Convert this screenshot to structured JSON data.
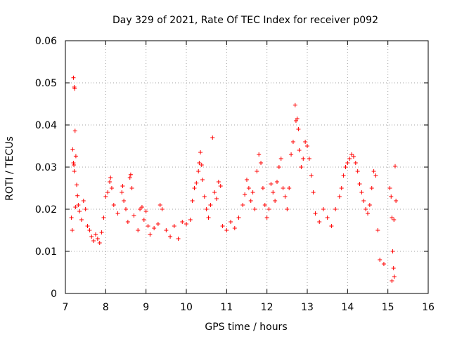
{
  "chart_data": {
    "type": "scatter",
    "title": "Day 329 of 2021, Rate Of TEC Index for receiver p092",
    "xlabel": "GPS time / hours",
    "ylabel": "ROTI / TECUs",
    "xlim": [
      7,
      16
    ],
    "ylim": [
      0,
      0.06
    ],
    "xticks": [
      7,
      8,
      9,
      10,
      11,
      12,
      13,
      14,
      15,
      16
    ],
    "yticks": [
      0,
      0.01,
      0.02,
      0.03,
      0.04,
      0.05,
      0.06
    ],
    "xtick_labels": [
      "7",
      "8",
      "9",
      "10",
      "11",
      "12",
      "13",
      "14",
      "15",
      "16"
    ],
    "ytick_labels": [
      "0",
      "0.01",
      "0.02",
      "0.03",
      "0.04",
      "0.05",
      "0.06"
    ],
    "grid": true,
    "marker": "plus",
    "color": "#ff0000",
    "points": [
      [
        7.2,
        0.0512
      ],
      [
        7.22,
        0.049
      ],
      [
        7.23,
        0.0486
      ],
      [
        7.24,
        0.0386
      ],
      [
        7.18,
        0.0342
      ],
      [
        7.2,
        0.031
      ],
      [
        7.21,
        0.0305
      ],
      [
        7.26,
        0.0326
      ],
      [
        7.22,
        0.029
      ],
      [
        7.28,
        0.0258
      ],
      [
        7.3,
        0.0232
      ],
      [
        7.32,
        0.021
      ],
      [
        7.25,
        0.0205
      ],
      [
        7.35,
        0.0195
      ],
      [
        7.4,
        0.0175
      ],
      [
        7.45,
        0.022
      ],
      [
        7.5,
        0.02
      ],
      [
        7.55,
        0.016
      ],
      [
        7.15,
        0.018
      ],
      [
        7.17,
        0.015
      ],
      [
        7.6,
        0.015
      ],
      [
        7.65,
        0.0135
      ],
      [
        7.7,
        0.0125
      ],
      [
        7.75,
        0.014
      ],
      [
        7.8,
        0.013
      ],
      [
        7.85,
        0.012
      ],
      [
        7.9,
        0.0145
      ],
      [
        7.95,
        0.018
      ],
      [
        8.0,
        0.023
      ],
      [
        8.05,
        0.024
      ],
      [
        8.1,
        0.0265
      ],
      [
        8.12,
        0.0275
      ],
      [
        8.15,
        0.025
      ],
      [
        8.2,
        0.021
      ],
      [
        8.3,
        0.019
      ],
      [
        8.4,
        0.024
      ],
      [
        8.42,
        0.0255
      ],
      [
        8.45,
        0.022
      ],
      [
        8.5,
        0.02
      ],
      [
        8.55,
        0.017
      ],
      [
        8.6,
        0.0275
      ],
      [
        8.62,
        0.0282
      ],
      [
        8.65,
        0.025
      ],
      [
        8.7,
        0.0185
      ],
      [
        8.8,
        0.015
      ],
      [
        8.85,
        0.02
      ],
      [
        8.9,
        0.0205
      ],
      [
        8.95,
        0.0175
      ],
      [
        9.0,
        0.0195
      ],
      [
        9.05,
        0.016
      ],
      [
        9.1,
        0.014
      ],
      [
        9.2,
        0.0155
      ],
      [
        9.3,
        0.0165
      ],
      [
        9.35,
        0.021
      ],
      [
        9.4,
        0.02
      ],
      [
        9.5,
        0.015
      ],
      [
        9.6,
        0.0135
      ],
      [
        9.7,
        0.016
      ],
      [
        9.8,
        0.013
      ],
      [
        9.9,
        0.017
      ],
      [
        10.0,
        0.0165
      ],
      [
        10.1,
        0.0175
      ],
      [
        10.15,
        0.022
      ],
      [
        10.2,
        0.025
      ],
      [
        10.25,
        0.0262
      ],
      [
        10.3,
        0.029
      ],
      [
        10.32,
        0.031
      ],
      [
        10.35,
        0.0335
      ],
      [
        10.38,
        0.0305
      ],
      [
        10.4,
        0.027
      ],
      [
        10.45,
        0.023
      ],
      [
        10.5,
        0.02
      ],
      [
        10.55,
        0.018
      ],
      [
        10.6,
        0.021
      ],
      [
        10.65,
        0.037
      ],
      [
        10.7,
        0.024
      ],
      [
        10.75,
        0.0225
      ],
      [
        10.8,
        0.0265
      ],
      [
        10.85,
        0.0255
      ],
      [
        10.9,
        0.016
      ],
      [
        11.0,
        0.015
      ],
      [
        11.1,
        0.017
      ],
      [
        11.2,
        0.0155
      ],
      [
        11.3,
        0.018
      ],
      [
        11.4,
        0.021
      ],
      [
        11.45,
        0.0235
      ],
      [
        11.5,
        0.027
      ],
      [
        11.55,
        0.025
      ],
      [
        11.6,
        0.022
      ],
      [
        11.65,
        0.024
      ],
      [
        11.7,
        0.02
      ],
      [
        11.75,
        0.029
      ],
      [
        11.8,
        0.033
      ],
      [
        11.85,
        0.031
      ],
      [
        11.9,
        0.025
      ],
      [
        11.95,
        0.021
      ],
      [
        12.0,
        0.018
      ],
      [
        12.05,
        0.02
      ],
      [
        12.1,
        0.026
      ],
      [
        12.15,
        0.024
      ],
      [
        12.2,
        0.022
      ],
      [
        12.25,
        0.0265
      ],
      [
        12.3,
        0.03
      ],
      [
        12.35,
        0.032
      ],
      [
        12.4,
        0.025
      ],
      [
        12.45,
        0.023
      ],
      [
        12.5,
        0.02
      ],
      [
        12.55,
        0.025
      ],
      [
        12.6,
        0.033
      ],
      [
        12.65,
        0.036
      ],
      [
        12.7,
        0.0447
      ],
      [
        12.72,
        0.041
      ],
      [
        12.75,
        0.0415
      ],
      [
        12.78,
        0.039
      ],
      [
        12.8,
        0.034
      ],
      [
        12.85,
        0.03
      ],
      [
        12.9,
        0.032
      ],
      [
        12.95,
        0.036
      ],
      [
        13.0,
        0.035
      ],
      [
        13.05,
        0.032
      ],
      [
        13.1,
        0.028
      ],
      [
        13.15,
        0.024
      ],
      [
        13.2,
        0.019
      ],
      [
        13.3,
        0.017
      ],
      [
        13.4,
        0.02
      ],
      [
        13.5,
        0.018
      ],
      [
        13.6,
        0.016
      ],
      [
        13.7,
        0.02
      ],
      [
        13.8,
        0.023
      ],
      [
        13.85,
        0.025
      ],
      [
        13.9,
        0.028
      ],
      [
        13.95,
        0.03
      ],
      [
        14.0,
        0.031
      ],
      [
        14.05,
        0.032
      ],
      [
        14.1,
        0.033
      ],
      [
        14.15,
        0.0325
      ],
      [
        14.2,
        0.031
      ],
      [
        14.25,
        0.029
      ],
      [
        14.3,
        0.026
      ],
      [
        14.35,
        0.024
      ],
      [
        14.4,
        0.022
      ],
      [
        14.45,
        0.02
      ],
      [
        14.5,
        0.019
      ],
      [
        14.55,
        0.021
      ],
      [
        14.6,
        0.025
      ],
      [
        14.65,
        0.029
      ],
      [
        14.7,
        0.028
      ],
      [
        14.75,
        0.015
      ],
      [
        14.8,
        0.008
      ],
      [
        14.9,
        0.007
      ],
      [
        15.05,
        0.025
      ],
      [
        15.08,
        0.023
      ],
      [
        15.1,
        0.018
      ],
      [
        15.15,
        0.0175
      ],
      [
        15.18,
        0.0302
      ],
      [
        15.2,
        0.022
      ],
      [
        15.12,
        0.01
      ],
      [
        15.14,
        0.006
      ],
      [
        15.16,
        0.004
      ],
      [
        15.1,
        0.003
      ]
    ]
  }
}
